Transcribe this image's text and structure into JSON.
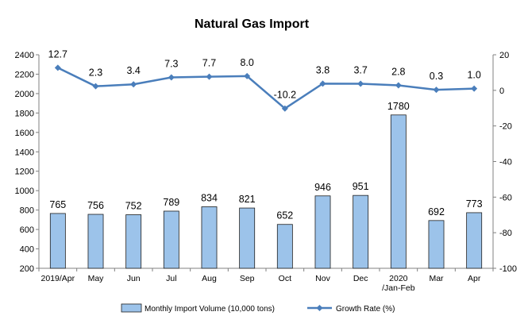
{
  "chart_data": {
    "type": "bar+line",
    "title": "Natural Gas Import",
    "categories": [
      "2019/Apr",
      "May",
      "Jun",
      "Jul",
      "Aug",
      "Sep",
      "Oct",
      "Nov",
      "Dec",
      "2020\n/Jan-Feb",
      "Mar",
      "Apr"
    ],
    "series": [
      {
        "name": "Monthly Import Volume (10,000 tons)",
        "type": "bar",
        "axis": "left",
        "color": "#9CC3EA",
        "values": [
          765,
          756,
          752,
          789,
          834,
          821,
          652,
          946,
          951,
          1780,
          692,
          773
        ]
      },
      {
        "name": "Growth Rate (%)",
        "type": "line",
        "axis": "right",
        "color": "#4A7EBB",
        "values": [
          12.7,
          2.3,
          3.4,
          7.3,
          7.7,
          8.0,
          -10.2,
          3.8,
          3.7,
          2.8,
          0.3,
          1.0
        ],
        "labels": [
          "12.7",
          "2.3",
          "3.4",
          "7.3",
          "7.7",
          "8.0",
          "-10.2",
          "3.8",
          "3.7",
          "2.8",
          "0.3",
          "1.0"
        ]
      }
    ],
    "y_left": {
      "min": 200,
      "max": 2400,
      "step": 200,
      "ticks": [
        "200",
        "400",
        "600",
        "800",
        "1000",
        "1200",
        "1400",
        "1600",
        "1800",
        "2000",
        "2200",
        "2400"
      ]
    },
    "y_right": {
      "min": -100,
      "max": 20,
      "step": 20,
      "ticks": [
        "-100",
        "-80",
        "-60",
        "-40",
        "-20",
        "0",
        "20"
      ]
    },
    "grid": false,
    "legend_position": "bottom"
  }
}
